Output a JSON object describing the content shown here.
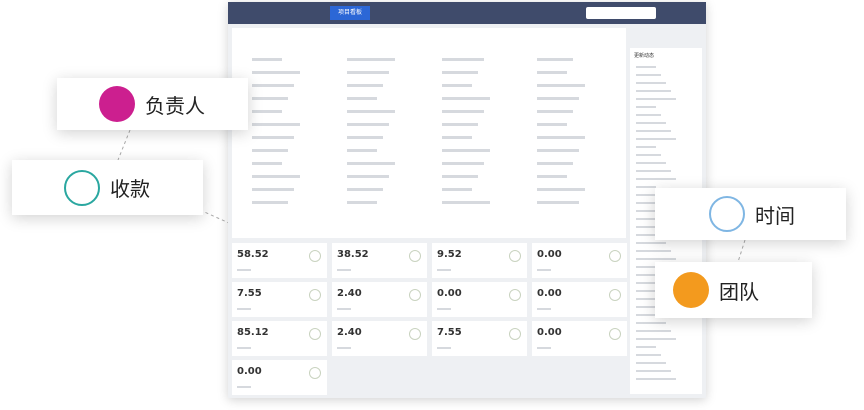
{
  "callouts": [
    {
      "label": "负责人"
    },
    {
      "label": "收款"
    },
    {
      "label": "时间"
    },
    {
      "label": "团队"
    }
  ],
  "app": {
    "nav_tab": "项目看板",
    "side_title": "更新动态"
  },
  "stats": [
    "58.52",
    "38.52",
    "9.52",
    "0.00",
    "7.55",
    "2.40",
    "0.00",
    "0.00",
    "85.12",
    "2.40",
    "7.55",
    "0.00",
    "0.00"
  ]
}
